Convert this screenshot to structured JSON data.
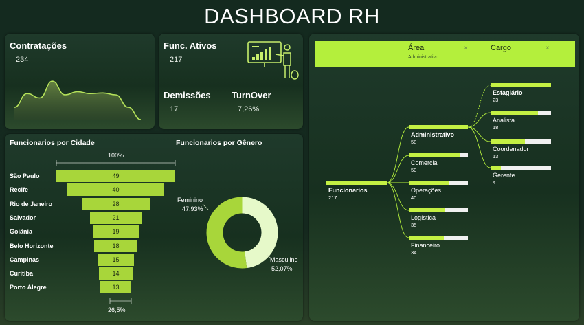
{
  "header": {
    "title": "DASHBOARD RH"
  },
  "kpis": {
    "contratacoes": {
      "label": "Contratações",
      "value": "234"
    },
    "ativos": {
      "label": "Func. Ativos",
      "value": "217"
    },
    "demissoes": {
      "label": "Demissões",
      "value": "17"
    },
    "turnover": {
      "label": "TurnOver",
      "value": "7,26%"
    }
  },
  "colors": {
    "accent": "#b4ef3c",
    "funnel": "#a8d63a",
    "donut_main": "#a8d63a",
    "donut_light": "#e6f9c9"
  },
  "icons": {
    "presentation": "presenter-with-chart-icon",
    "close": "close-icon"
  },
  "chart_data": [
    {
      "type": "area",
      "title": "",
      "series": [
        {
          "values": [
            20,
            42,
            35,
            62,
            40,
            45,
            42,
            43,
            40,
            20,
            0
          ]
        }
      ]
    },
    {
      "type": "bar",
      "subtype": "funnel",
      "title": "Funcionarios por Cidade",
      "categories": [
        "São Paulo",
        "Recife",
        "Rio de Janeiro",
        "Salvador",
        "Goiânia",
        "Belo Horizonte",
        "Campinas",
        "Curitiba",
        "Porto Alegre"
      ],
      "values": [
        49,
        40,
        28,
        21,
        19,
        18,
        15,
        14,
        13
      ],
      "top_label": "100%",
      "bottom_label": "26,5%"
    },
    {
      "type": "pie",
      "subtype": "donut",
      "title": "Funcionarios por Gênero",
      "labels": [
        "Feminino",
        "Masculino"
      ],
      "values": [
        47.93,
        52.07
      ],
      "value_labels": [
        "47,93%",
        "52,07%"
      ]
    },
    {
      "type": "tree",
      "title": "",
      "filters": [
        {
          "label": "Área",
          "value": "Administrativo"
        },
        {
          "label": "Cargo",
          "value": ""
        }
      ],
      "root": {
        "label": "Funcionarios",
        "value": 217
      },
      "areas": [
        {
          "label": "Administrativo",
          "value": 58,
          "fill": 1.0,
          "selected": true
        },
        {
          "label": "Comercial",
          "value": 50,
          "fill": 0.86
        },
        {
          "label": "Operações",
          "value": 40,
          "fill": 0.69
        },
        {
          "label": "Logística",
          "value": 35,
          "fill": 0.6
        },
        {
          "label": "Financeiro",
          "value": 34,
          "fill": 0.59
        }
      ],
      "cargos": [
        {
          "label": "Estagiário",
          "value": 23,
          "fill": 1.0,
          "selected": true
        },
        {
          "label": "Analista",
          "value": 18,
          "fill": 0.78
        },
        {
          "label": "Coordenador",
          "value": 13,
          "fill": 0.57
        },
        {
          "label": "Gerente",
          "value": 4,
          "fill": 0.17
        }
      ]
    }
  ]
}
